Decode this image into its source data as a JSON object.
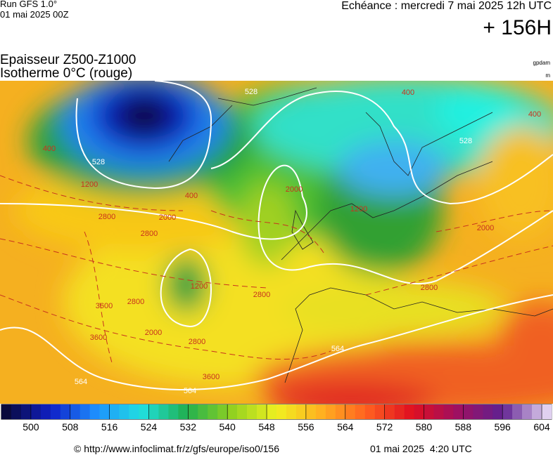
{
  "header": {
    "run": "Run GFS 1.0°",
    "run_date": "01 mai 2025 00Z",
    "valid": "Echéance : mercredi 7 mai 2025 12h UTC",
    "lead": "+ 156H"
  },
  "title": {
    "line1": "Epaisseur Z500-Z1000",
    "line2": "Isotherme 0°C (rouge)"
  },
  "units": {
    "thickness": "gpdam",
    "iso0": "m"
  },
  "contour_labels": [
    "528",
    "528",
    "528",
    "1200",
    "1200",
    "1200",
    "2000",
    "2000",
    "2000",
    "2000",
    "2800",
    "2800",
    "2800",
    "2800",
    "2800",
    "2800",
    "3600",
    "3600",
    "3600",
    "564",
    "564",
    "564",
    "400",
    "400",
    "400",
    "400"
  ],
  "colorbar": {
    "lim": [
      494,
      606
    ],
    "ticks": [
      500,
      508,
      516,
      524,
      532,
      540,
      548,
      556,
      564,
      572,
      580,
      588,
      596,
      604
    ],
    "stops": [
      "#0a0a3c",
      "#1020c8",
      "#1e90ff",
      "#20e0e0",
      "#20b050",
      "#90d020",
      "#f0f020",
      "#ffb020",
      "#ff6020",
      "#e01020",
      "#a01060",
      "#602090",
      "#e0d0f0"
    ]
  },
  "footer": {
    "source": "© http://www.infoclimat.fr/z/gfs/europe/iso0/156",
    "generated": "01 mai 2025  4:20 UTC"
  }
}
